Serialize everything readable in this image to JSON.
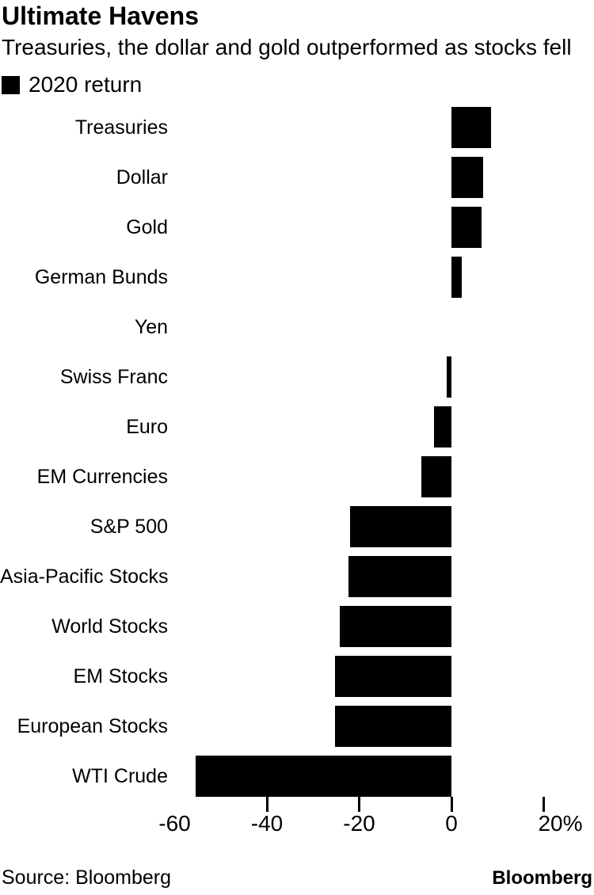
{
  "header": {
    "title": "Ultimate Havens",
    "subtitle": "Treasuries, the dollar and gold outperformed as stocks fell"
  },
  "legend": {
    "label": "2020 return",
    "swatch_color": "#000000"
  },
  "chart_data": {
    "type": "bar",
    "orientation": "horizontal",
    "title": "Ultimate Havens",
    "subtitle": "Treasuries, the dollar and gold outperformed as stocks fell",
    "legend": [
      "2020 return"
    ],
    "categories": [
      "Treasuries",
      "Dollar",
      "Gold",
      "German Bunds",
      "Yen",
      "Swiss Franc",
      "Euro",
      "EM Currencies",
      "S&P 500",
      "Asia-Pacific Stocks",
      "World Stocks",
      "EM Stocks",
      "European Stocks",
      "WTI Crude"
    ],
    "values": [
      8.6,
      6.9,
      6.6,
      2.2,
      0,
      -1.1,
      -3.7,
      -6.6,
      -22.0,
      -22.3,
      -24.2,
      -25.2,
      -25.2,
      -55.5
    ],
    "value_unit": "%",
    "xlim": [
      -60,
      20
    ],
    "x_ticks": [
      {
        "value": -60,
        "label": "-60",
        "tick_mark": false
      },
      {
        "value": -40,
        "label": "-40",
        "tick_mark": true
      },
      {
        "value": -20,
        "label": "-20",
        "tick_mark": true
      },
      {
        "value": 0,
        "label": "0",
        "tick_mark": true
      },
      {
        "value": 20,
        "label": "20%",
        "tick_mark": true
      }
    ],
    "bar_color": "#000000",
    "grid": false,
    "legend_position": "top-left"
  },
  "footer": {
    "source": "Source: Bloomberg",
    "logo": "Bloomberg"
  }
}
